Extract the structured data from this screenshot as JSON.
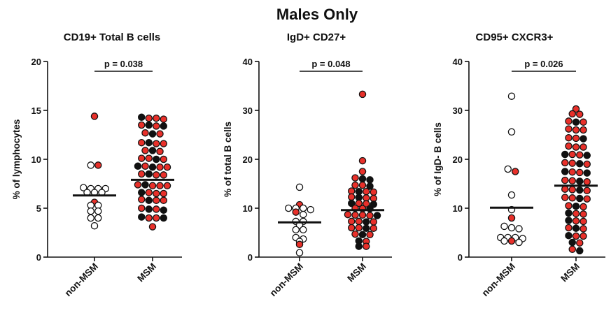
{
  "figure": {
    "title": "Males Only"
  },
  "colors": {
    "red": "#e8302a",
    "black": "#111111",
    "open": "#ffffff"
  },
  "chart_data": [
    {
      "type": "scatter",
      "title": "CD19+ Total B cells",
      "ylabel": "% of lymphocytes",
      "ylim": [
        0,
        20
      ],
      "yticks": [
        0,
        5,
        10,
        15,
        20
      ],
      "categories": [
        "non-MSM",
        "MSM"
      ],
      "means": [
        6.3,
        7.9
      ],
      "significance": {
        "label": "p = 0.038",
        "y": 19.0
      },
      "groups": [
        {
          "name": "non-MSM",
          "points": [
            {
              "y": 14.4,
              "c": "red"
            },
            {
              "y": 9.4,
              "c": "open"
            },
            {
              "y": 9.4,
              "c": "red"
            },
            {
              "y": 7.1,
              "c": "open"
            },
            {
              "y": 7.0,
              "c": "open"
            },
            {
              "y": 7.0,
              "c": "open"
            },
            {
              "y": 7.0,
              "c": "open"
            },
            {
              "y": 6.6,
              "c": "open"
            },
            {
              "y": 6.6,
              "c": "open"
            },
            {
              "y": 6.6,
              "c": "open"
            },
            {
              "y": 5.6,
              "c": "red"
            },
            {
              "y": 5.3,
              "c": "open"
            },
            {
              "y": 5.3,
              "c": "open"
            },
            {
              "y": 4.7,
              "c": "open"
            },
            {
              "y": 4.7,
              "c": "open"
            },
            {
              "y": 4.0,
              "c": "open"
            },
            {
              "y": 4.0,
              "c": "open"
            },
            {
              "y": 3.2,
              "c": "open"
            }
          ]
        },
        {
          "name": "MSM",
          "points": [
            {
              "y": 14.3,
              "c": "black"
            },
            {
              "y": 14.2,
              "c": "red"
            },
            {
              "y": 14.2,
              "c": "red"
            },
            {
              "y": 14.1,
              "c": "red"
            },
            {
              "y": 13.5,
              "c": "red"
            },
            {
              "y": 13.5,
              "c": "black"
            },
            {
              "y": 13.4,
              "c": "red"
            },
            {
              "y": 13.4,
              "c": "black"
            },
            {
              "y": 12.7,
              "c": "red"
            },
            {
              "y": 12.6,
              "c": "black"
            },
            {
              "y": 12.6,
              "c": "red"
            },
            {
              "y": 11.7,
              "c": "red"
            },
            {
              "y": 11.7,
              "c": "black"
            },
            {
              "y": 11.6,
              "c": "red"
            },
            {
              "y": 11.6,
              "c": "red"
            },
            {
              "y": 10.9,
              "c": "red"
            },
            {
              "y": 10.9,
              "c": "black"
            },
            {
              "y": 10.8,
              "c": "red"
            },
            {
              "y": 10.1,
              "c": "red"
            },
            {
              "y": 10.1,
              "c": "red"
            },
            {
              "y": 10.0,
              "c": "black"
            },
            {
              "y": 10.0,
              "c": "red"
            },
            {
              "y": 9.3,
              "c": "black"
            },
            {
              "y": 9.3,
              "c": "red"
            },
            {
              "y": 9.2,
              "c": "black"
            },
            {
              "y": 9.2,
              "c": "red"
            },
            {
              "y": 9.2,
              "c": "red"
            },
            {
              "y": 8.5,
              "c": "red"
            },
            {
              "y": 8.5,
              "c": "black"
            },
            {
              "y": 8.4,
              "c": "red"
            },
            {
              "y": 8.4,
              "c": "red"
            },
            {
              "y": 7.4,
              "c": "red"
            },
            {
              "y": 7.4,
              "c": "black"
            },
            {
              "y": 7.3,
              "c": "red"
            },
            {
              "y": 7.3,
              "c": "red"
            },
            {
              "y": 7.3,
              "c": "red"
            },
            {
              "y": 6.6,
              "c": "black"
            },
            {
              "y": 6.6,
              "c": "red"
            },
            {
              "y": 6.5,
              "c": "red"
            },
            {
              "y": 6.5,
              "c": "red"
            },
            {
              "y": 5.9,
              "c": "red"
            },
            {
              "y": 5.8,
              "c": "black"
            },
            {
              "y": 5.8,
              "c": "red"
            },
            {
              "y": 5.8,
              "c": "red"
            },
            {
              "y": 5.0,
              "c": "red"
            },
            {
              "y": 4.9,
              "c": "black"
            },
            {
              "y": 4.9,
              "c": "red"
            },
            {
              "y": 4.8,
              "c": "black"
            },
            {
              "y": 4.1,
              "c": "black"
            },
            {
              "y": 4.0,
              "c": "red"
            },
            {
              "y": 4.0,
              "c": "red"
            },
            {
              "y": 4.0,
              "c": "black"
            },
            {
              "y": 3.1,
              "c": "red"
            }
          ]
        }
      ]
    },
    {
      "type": "scatter",
      "title": "IgD+ CD27+",
      "ylabel": "% of total B cells",
      "ylim": [
        0,
        40
      ],
      "yticks": [
        0,
        10,
        20,
        30,
        40
      ],
      "categories": [
        "non-MSM",
        "MSM"
      ],
      "means": [
        7.1,
        9.6
      ],
      "significance": {
        "label": "p = 0.048",
        "y": 38.0
      },
      "groups": [
        {
          "name": "non-MSM",
          "points": [
            {
              "y": 14.3,
              "c": "open"
            },
            {
              "y": 10.7,
              "c": "red"
            },
            {
              "y": 10.0,
              "c": "open"
            },
            {
              "y": 10.0,
              "c": "open"
            },
            {
              "y": 10.0,
              "c": "open"
            },
            {
              "y": 9.7,
              "c": "open"
            },
            {
              "y": 9.2,
              "c": "red"
            },
            {
              "y": 8.7,
              "c": "open"
            },
            {
              "y": 7.3,
              "c": "open"
            },
            {
              "y": 7.3,
              "c": "open"
            },
            {
              "y": 6.5,
              "c": "open"
            },
            {
              "y": 5.6,
              "c": "open"
            },
            {
              "y": 5.6,
              "c": "open"
            },
            {
              "y": 4.0,
              "c": "open"
            },
            {
              "y": 3.7,
              "c": "open"
            },
            {
              "y": 3.2,
              "c": "open"
            },
            {
              "y": 2.6,
              "c": "red"
            },
            {
              "y": 0.9,
              "c": "open"
            }
          ]
        },
        {
          "name": "MSM",
          "points": [
            {
              "y": 33.3,
              "c": "red"
            },
            {
              "y": 19.7,
              "c": "red"
            },
            {
              "y": 17.5,
              "c": "red"
            },
            {
              "y": 16.2,
              "c": "red"
            },
            {
              "y": 16.0,
              "c": "black"
            },
            {
              "y": 15.8,
              "c": "black"
            },
            {
              "y": 14.7,
              "c": "red"
            },
            {
              "y": 14.7,
              "c": "red"
            },
            {
              "y": 14.5,
              "c": "black"
            },
            {
              "y": 13.5,
              "c": "red"
            },
            {
              "y": 13.4,
              "c": "black"
            },
            {
              "y": 13.4,
              "c": "red"
            },
            {
              "y": 13.3,
              "c": "red"
            },
            {
              "y": 12.3,
              "c": "red"
            },
            {
              "y": 12.2,
              "c": "black"
            },
            {
              "y": 12.1,
              "c": "red"
            },
            {
              "y": 12.0,
              "c": "red"
            },
            {
              "y": 11.0,
              "c": "black"
            },
            {
              "y": 11.0,
              "c": "red"
            },
            {
              "y": 10.9,
              "c": "red"
            },
            {
              "y": 10.8,
              "c": "black"
            },
            {
              "y": 10.0,
              "c": "red"
            },
            {
              "y": 9.9,
              "c": "red"
            },
            {
              "y": 9.9,
              "c": "black"
            },
            {
              "y": 8.7,
              "c": "red"
            },
            {
              "y": 8.6,
              "c": "red"
            },
            {
              "y": 8.6,
              "c": "red"
            },
            {
              "y": 8.5,
              "c": "red"
            },
            {
              "y": 8.5,
              "c": "black"
            },
            {
              "y": 7.3,
              "c": "red"
            },
            {
              "y": 7.3,
              "c": "red"
            },
            {
              "y": 7.2,
              "c": "black"
            },
            {
              "y": 7.2,
              "c": "red"
            },
            {
              "y": 6.0,
              "c": "red"
            },
            {
              "y": 6.0,
              "c": "red"
            },
            {
              "y": 5.9,
              "c": "black"
            },
            {
              "y": 5.9,
              "c": "red"
            },
            {
              "y": 4.7,
              "c": "red"
            },
            {
              "y": 4.6,
              "c": "black"
            },
            {
              "y": 4.6,
              "c": "red"
            },
            {
              "y": 3.3,
              "c": "black"
            },
            {
              "y": 3.2,
              "c": "red"
            },
            {
              "y": 2.2,
              "c": "black"
            },
            {
              "y": 2.2,
              "c": "red"
            }
          ]
        }
      ]
    },
    {
      "type": "scatter",
      "title": "CD95+ CXCR3+",
      "ylabel": "% of IgD- B cells",
      "ylim": [
        0,
        40
      ],
      "yticks": [
        0,
        10,
        20,
        30,
        40
      ],
      "categories": [
        "non-MSM",
        "MSM"
      ],
      "means": [
        10.1,
        14.6
      ],
      "significance": {
        "label": "p = 0.026",
        "y": 38.0
      },
      "groups": [
        {
          "name": "non-MSM",
          "points": [
            {
              "y": 32.9,
              "c": "open"
            },
            {
              "y": 25.6,
              "c": "open"
            },
            {
              "y": 18.0,
              "c": "open"
            },
            {
              "y": 17.5,
              "c": "red"
            },
            {
              "y": 12.7,
              "c": "open"
            },
            {
              "y": 9.7,
              "c": "open"
            },
            {
              "y": 8.0,
              "c": "red"
            },
            {
              "y": 6.3,
              "c": "open"
            },
            {
              "y": 6.0,
              "c": "open"
            },
            {
              "y": 5.8,
              "c": "open"
            },
            {
              "y": 4.0,
              "c": "open"
            },
            {
              "y": 4.0,
              "c": "open"
            },
            {
              "y": 4.0,
              "c": "open"
            },
            {
              "y": 3.8,
              "c": "open"
            },
            {
              "y": 3.3,
              "c": "open"
            },
            {
              "y": 3.3,
              "c": "red"
            },
            {
              "y": 3.0,
              "c": "open"
            }
          ]
        },
        {
          "name": "MSM",
          "points": [
            {
              "y": 30.3,
              "c": "red"
            },
            {
              "y": 29.3,
              "c": "red"
            },
            {
              "y": 29.2,
              "c": "red"
            },
            {
              "y": 27.8,
              "c": "red"
            },
            {
              "y": 27.6,
              "c": "black"
            },
            {
              "y": 27.6,
              "c": "red"
            },
            {
              "y": 26.2,
              "c": "red"
            },
            {
              "y": 26.0,
              "c": "red"
            },
            {
              "y": 26.0,
              "c": "red"
            },
            {
              "y": 24.4,
              "c": "red"
            },
            {
              "y": 24.2,
              "c": "black"
            },
            {
              "y": 24.3,
              "c": "red"
            },
            {
              "y": 22.7,
              "c": "red"
            },
            {
              "y": 22.5,
              "c": "red"
            },
            {
              "y": 22.5,
              "c": "red"
            },
            {
              "y": 21.0,
              "c": "black"
            },
            {
              "y": 21.0,
              "c": "red"
            },
            {
              "y": 20.9,
              "c": "red"
            },
            {
              "y": 20.8,
              "c": "black"
            },
            {
              "y": 19.3,
              "c": "red"
            },
            {
              "y": 19.2,
              "c": "red"
            },
            {
              "y": 19.1,
              "c": "black"
            },
            {
              "y": 19.0,
              "c": "red"
            },
            {
              "y": 17.5,
              "c": "black"
            },
            {
              "y": 17.4,
              "c": "red"
            },
            {
              "y": 17.3,
              "c": "red"
            },
            {
              "y": 17.2,
              "c": "black"
            },
            {
              "y": 15.7,
              "c": "red"
            },
            {
              "y": 15.6,
              "c": "red"
            },
            {
              "y": 15.5,
              "c": "black"
            },
            {
              "y": 15.4,
              "c": "red"
            },
            {
              "y": 13.9,
              "c": "red"
            },
            {
              "y": 13.8,
              "c": "red"
            },
            {
              "y": 13.7,
              "c": "black"
            },
            {
              "y": 13.6,
              "c": "red"
            },
            {
              "y": 12.2,
              "c": "red"
            },
            {
              "y": 12.1,
              "c": "red"
            },
            {
              "y": 12.0,
              "c": "black"
            },
            {
              "y": 11.9,
              "c": "red"
            },
            {
              "y": 10.5,
              "c": "red"
            },
            {
              "y": 10.4,
              "c": "black"
            },
            {
              "y": 10.3,
              "c": "red"
            },
            {
              "y": 9.0,
              "c": "black"
            },
            {
              "y": 8.9,
              "c": "red"
            },
            {
              "y": 8.8,
              "c": "red"
            },
            {
              "y": 7.5,
              "c": "black"
            },
            {
              "y": 7.4,
              "c": "red"
            },
            {
              "y": 7.3,
              "c": "red"
            },
            {
              "y": 6.0,
              "c": "red"
            },
            {
              "y": 5.9,
              "c": "black"
            },
            {
              "y": 5.8,
              "c": "red"
            },
            {
              "y": 4.4,
              "c": "black"
            },
            {
              "y": 4.3,
              "c": "red"
            },
            {
              "y": 4.3,
              "c": "red"
            },
            {
              "y": 3.0,
              "c": "black"
            },
            {
              "y": 2.9,
              "c": "red"
            },
            {
              "y": 1.6,
              "c": "red"
            },
            {
              "y": 1.3,
              "c": "black"
            }
          ]
        }
      ]
    }
  ]
}
